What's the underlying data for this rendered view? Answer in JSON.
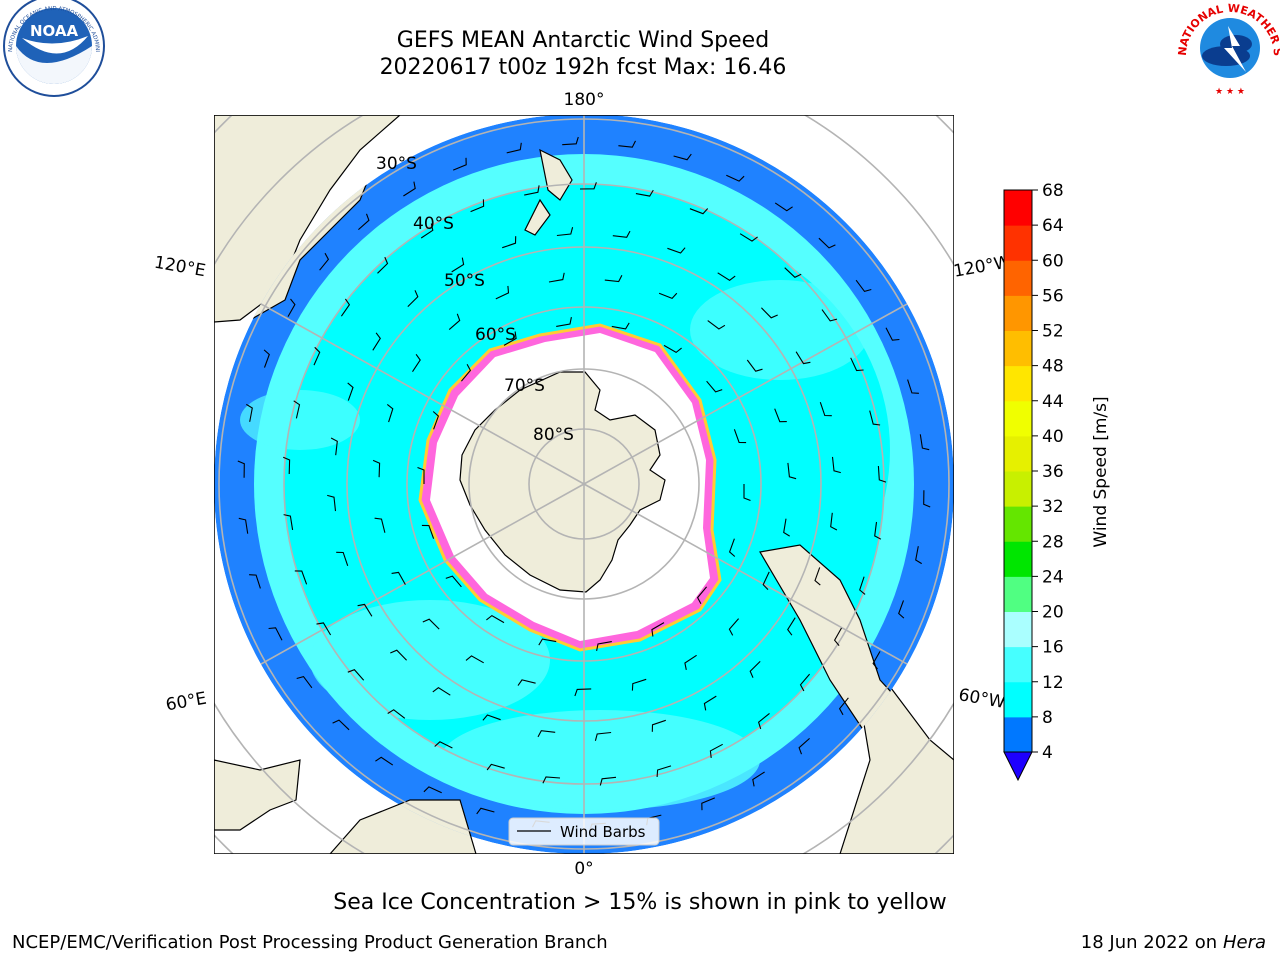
{
  "header": {
    "title_line1": "GEFS MEAN Antarctic Wind Speed",
    "title_line2": "20220617 t00z 192h fcst   Max: 16.46"
  },
  "logos": {
    "noaa_text": "NOAA",
    "noaa_ring_text": "NATIONAL OCEANIC AND ATMOSPHERIC ADMINISTRATION · U.S. DEPARTMENT OF COMMERCE",
    "nws_ring_text": "NATIONAL WEATHER SERVICE"
  },
  "map": {
    "projection": "south-polar-stereographic",
    "lon_labels": {
      "top": "180°",
      "bottom": "0°",
      "left_upper": "120°E",
      "left_lower": "60°E",
      "right_upper": "120°W",
      "right_lower": "60°W"
    },
    "lat_labels": [
      "30°S",
      "40°S",
      "50°S",
      "60°S",
      "70°S",
      "80°S"
    ],
    "legend_label": "Wind Barbs",
    "colors": {
      "land": "#efedda",
      "ocean_cyan": "#00ffff",
      "ocean_light": "#55ffff",
      "ocean_blue": "#1f82ff",
      "sea_ice": "#ffffff",
      "ice_edge": "#ff33cc",
      "grid": "#b4b4b4"
    }
  },
  "colorbar": {
    "label": "Wind Speed [m/s]",
    "ticks": [
      "4",
      "8",
      "12",
      "16",
      "20",
      "24",
      "28",
      "32",
      "36",
      "40",
      "44",
      "48",
      "52",
      "56",
      "60",
      "64",
      "68"
    ],
    "colors": [
      "#0078ff",
      "#00ffff",
      "#46ffff",
      "#aaffff",
      "#50ff82",
      "#00e600",
      "#64e600",
      "#c8f000",
      "#e6f000",
      "#f0ff00",
      "#ffe600",
      "#ffbe00",
      "#ff9600",
      "#ff6400",
      "#ff3200",
      "#ff0000"
    ],
    "extend_color": "#1e00ff"
  },
  "footer": {
    "subtitle": "Sea Ice Concentration > 15% is shown in pink to yellow",
    "left": "NCEP/EMC/Verification Post Processing Product Generation Branch",
    "right_date": "18 Jun 2022 on",
    "right_host": "Hera"
  }
}
